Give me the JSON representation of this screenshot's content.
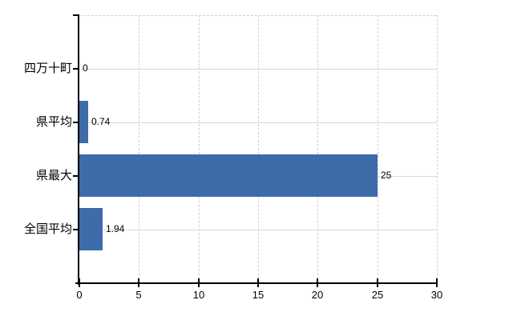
{
  "chart_data": {
    "type": "bar",
    "orientation": "horizontal",
    "title": "",
    "xlabel": "",
    "ylabel": "",
    "categories": [
      "四万十町",
      "県平均",
      "県最大",
      "全国平均"
    ],
    "values": [
      0,
      0.74,
      25,
      1.94
    ],
    "value_labels": [
      "0",
      "0.74",
      "25",
      "1.94"
    ],
    "xlim": [
      0,
      30
    ],
    "xticks": [
      0,
      5,
      10,
      15,
      20,
      25,
      30
    ],
    "grid": true,
    "legend_position": "none",
    "colors": {
      "bar": "#3e6ba9",
      "axis": "#000000",
      "vertical_gridline": "#d5ced6",
      "horizontal_gridline": "#d6dbd0",
      "text": "#000000",
      "background": "#ffffff"
    }
  }
}
